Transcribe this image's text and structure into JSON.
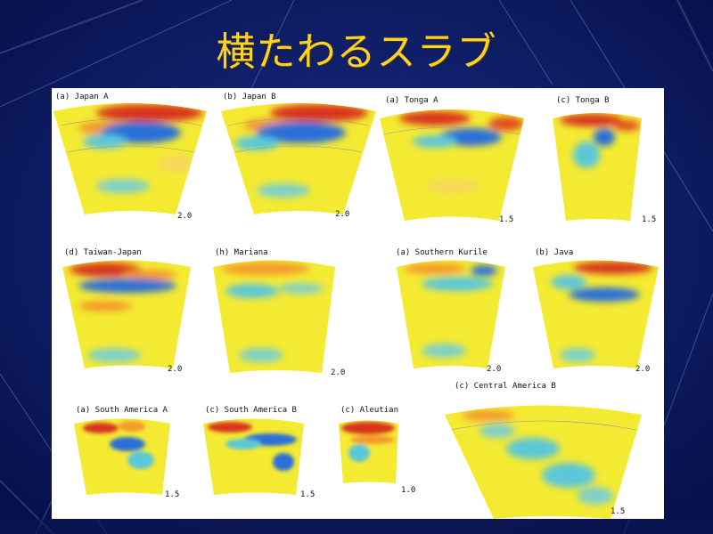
{
  "slide": {
    "title": "横たわるスラブ"
  },
  "colors": {
    "background": "#0b1a66",
    "title": "#ffd21f",
    "tomography_base": "#f4ea32",
    "fast_anomaly": "#2a6fd8",
    "slow_anomaly": "#d8361c"
  },
  "figure": {
    "panels": [
      {
        "label": "(a) Japan A",
        "scale": "2.0"
      },
      {
        "label": "(b) Japan B",
        "scale": "2.0"
      },
      {
        "label": "(a) Tonga A",
        "scale": "1.5"
      },
      {
        "label": "(c) Tonga B",
        "scale": "1.5"
      },
      {
        "label": "(d) Taiwan-Japan",
        "scale": "2.0"
      },
      {
        "label": "(h) Mariana",
        "scale": "2.0"
      },
      {
        "label": "(a) Southern Kurile",
        "scale": "2.0"
      },
      {
        "label": "(b) Java",
        "scale": "2.0"
      },
      {
        "label": "(a) South America A",
        "scale": "1.5"
      },
      {
        "label": "(c) South America B",
        "scale": "1.5"
      },
      {
        "label": "(c) Aleutian",
        "scale": "1.0"
      },
      {
        "label": "(c) Central America B",
        "scale": "1.5"
      }
    ]
  }
}
